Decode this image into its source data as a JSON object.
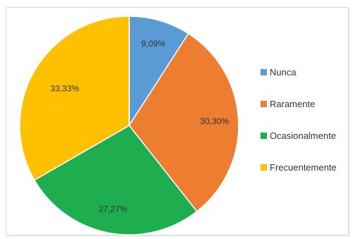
{
  "chart_data": {
    "type": "pie",
    "categories": [
      "Nunca",
      "Raramente",
      "Ocasionalmente",
      "Frecuentemente"
    ],
    "values": [
      9.09,
      30.3,
      27.27,
      33.33
    ],
    "data_labels": [
      "9,09%",
      "30,30%",
      "27,27%",
      "33,33%"
    ],
    "colors": [
      "#5B9BD5",
      "#ED7D31",
      "#1EAE4F",
      "#FFC000"
    ],
    "title": "",
    "legend_position": "right"
  }
}
